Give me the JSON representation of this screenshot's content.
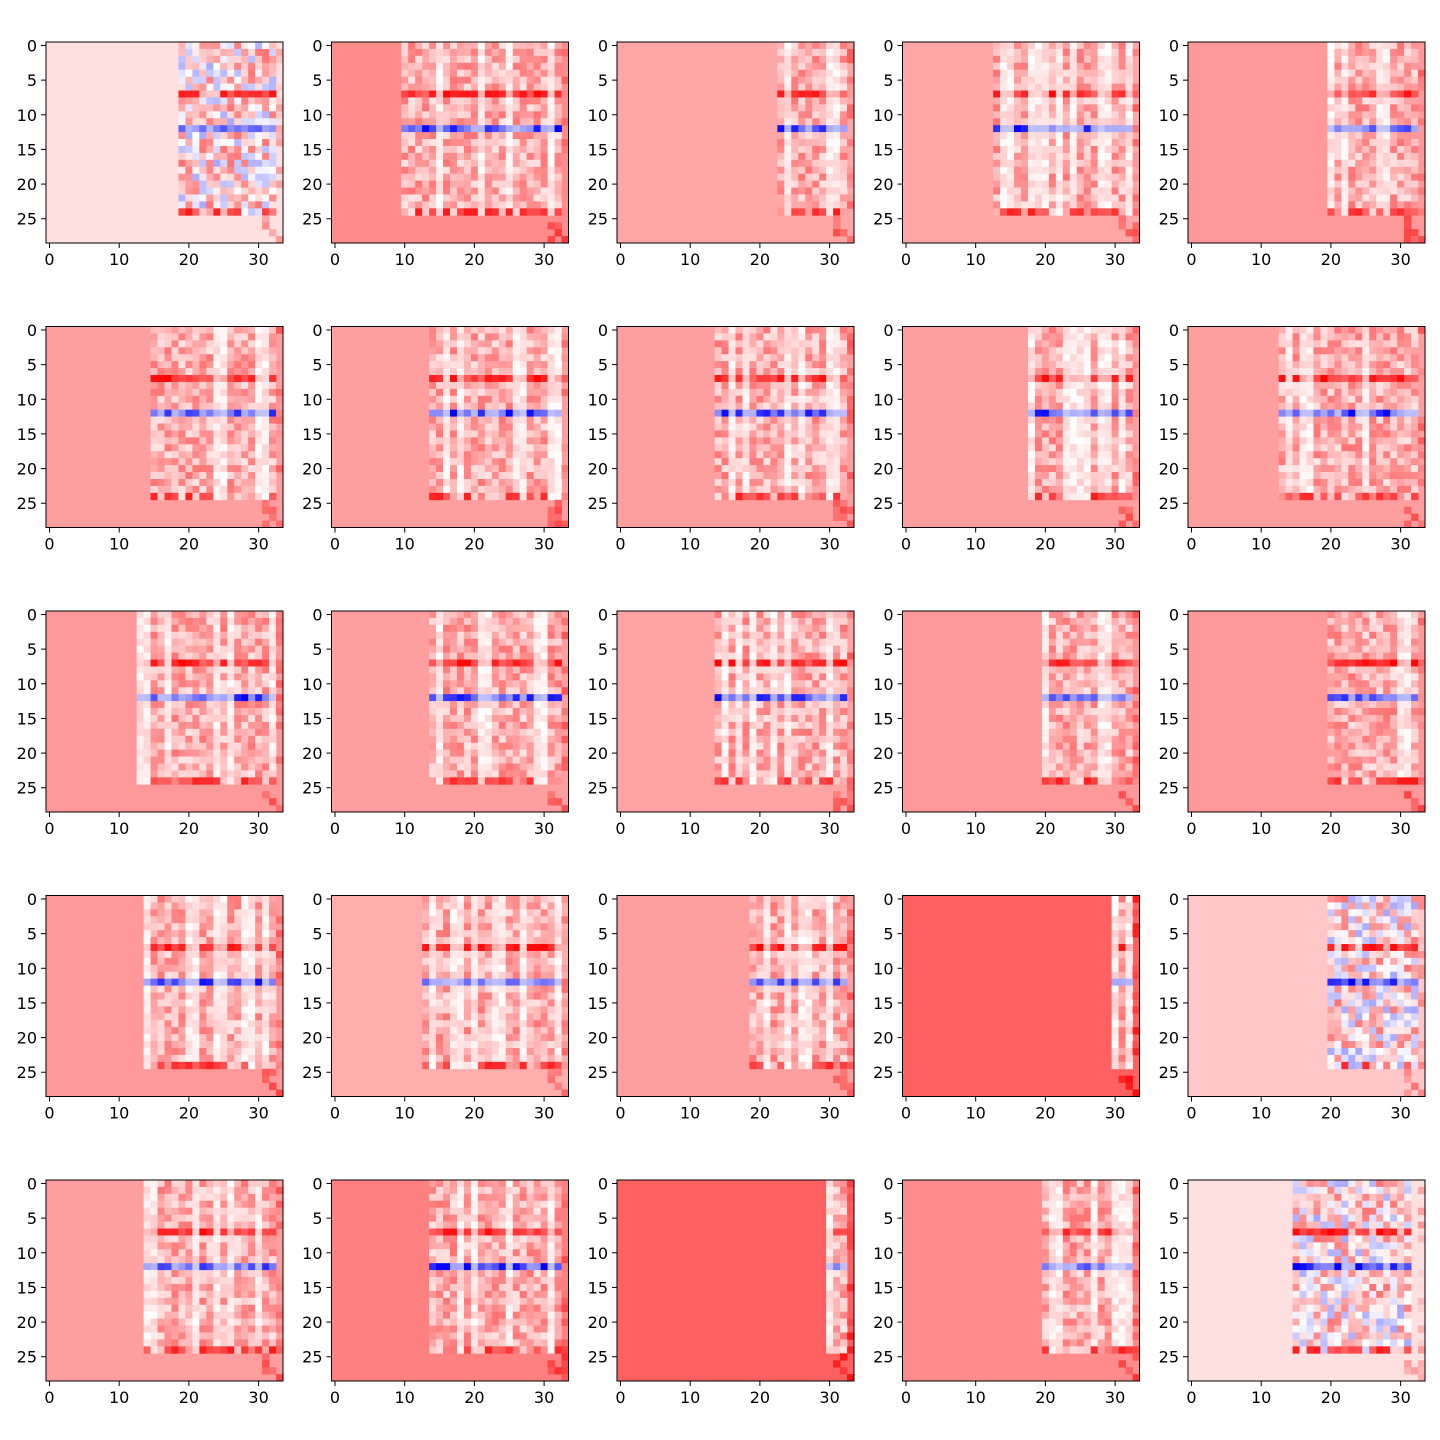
{
  "chart_data": {
    "type": "heatmap",
    "title": "",
    "colormap": "bwr",
    "panel_rows": 5,
    "panel_cols": 5,
    "matrix_rows": 29,
    "matrix_cols": 34,
    "xlim": [
      -0.5,
      33.5
    ],
    "ylim": [
      28.5,
      -0.5
    ],
    "x_ticks": [
      0,
      10,
      20,
      30
    ],
    "y_ticks": [
      0,
      5,
      10,
      15,
      20,
      25
    ],
    "x_tick_labels": [
      "0",
      "10",
      "20",
      "30"
    ],
    "y_tick_labels": [
      "0",
      "5",
      "10",
      "15",
      "20",
      "25"
    ],
    "colors": {
      "positive": "#ff0000",
      "negative": "#0000ff",
      "zero": "#ffffff"
    },
    "panels": [
      {
        "background": 0.12,
        "data_start": 19,
        "data_end": 32,
        "red_row": 7,
        "blue_row": 12,
        "blue_strength": 0.55,
        "mixed": true,
        "seed": 3
      },
      {
        "background": 0.45,
        "data_start": 10,
        "data_end": 32,
        "red_row": 7,
        "blue_row": 12,
        "blue_strength": 0.85,
        "mixed": false,
        "seed": 7
      },
      {
        "background": 0.35,
        "data_start": 23,
        "data_end": 32,
        "red_row": 7,
        "blue_row": 12,
        "blue_strength": 0.85,
        "mixed": false,
        "seed": 11
      },
      {
        "background": 0.35,
        "data_start": 13,
        "data_end": 32,
        "red_row": 7,
        "blue_row": 12,
        "blue_strength": 0.85,
        "mixed": false,
        "seed": 13
      },
      {
        "background": 0.4,
        "data_start": 20,
        "data_end": 32,
        "red_row": 7,
        "blue_row": 12,
        "blue_strength": 0.7,
        "mixed": false,
        "seed": 17
      },
      {
        "background": 0.38,
        "data_start": 15,
        "data_end": 32,
        "red_row": 7,
        "blue_row": 12,
        "blue_strength": 0.6,
        "mixed": false,
        "seed": 19
      },
      {
        "background": 0.38,
        "data_start": 14,
        "data_end": 32,
        "red_row": 7,
        "blue_row": 12,
        "blue_strength": 0.75,
        "mixed": false,
        "seed": 23
      },
      {
        "background": 0.38,
        "data_start": 14,
        "data_end": 32,
        "red_row": 7,
        "blue_row": 12,
        "blue_strength": 0.75,
        "mixed": false,
        "seed": 29
      },
      {
        "background": 0.38,
        "data_start": 18,
        "data_end": 32,
        "red_row": 7,
        "blue_row": 12,
        "blue_strength": 0.75,
        "mixed": false,
        "seed": 31
      },
      {
        "background": 0.38,
        "data_start": 13,
        "data_end": 32,
        "red_row": 7,
        "blue_row": 12,
        "blue_strength": 0.75,
        "mixed": false,
        "seed": 37
      },
      {
        "background": 0.4,
        "data_start": 13,
        "data_end": 32,
        "red_row": 7,
        "blue_row": 12,
        "blue_strength": 0.75,
        "mixed": false,
        "seed": 41
      },
      {
        "background": 0.38,
        "data_start": 14,
        "data_end": 32,
        "red_row": 7,
        "blue_row": 12,
        "blue_strength": 0.75,
        "mixed": false,
        "seed": 43
      },
      {
        "background": 0.36,
        "data_start": 14,
        "data_end": 32,
        "red_row": 7,
        "blue_row": 12,
        "blue_strength": 0.75,
        "mixed": false,
        "seed": 47
      },
      {
        "background": 0.4,
        "data_start": 20,
        "data_end": 32,
        "red_row": 7,
        "blue_row": 12,
        "blue_strength": 0.5,
        "mixed": false,
        "seed": 53
      },
      {
        "background": 0.4,
        "data_start": 20,
        "data_end": 32,
        "red_row": 7,
        "blue_row": 12,
        "blue_strength": 0.6,
        "mixed": false,
        "seed": 59
      },
      {
        "background": 0.4,
        "data_start": 14,
        "data_end": 32,
        "red_row": 7,
        "blue_row": 12,
        "blue_strength": 0.8,
        "mixed": false,
        "seed": 61
      },
      {
        "background": 0.32,
        "data_start": 13,
        "data_end": 32,
        "red_row": 7,
        "blue_row": 12,
        "blue_strength": 0.35,
        "mixed": false,
        "seed": 67
      },
      {
        "background": 0.38,
        "data_start": 19,
        "data_end": 32,
        "red_row": 7,
        "blue_row": 12,
        "blue_strength": 0.8,
        "mixed": false,
        "seed": 71
      },
      {
        "background": 0.62,
        "data_start": 30,
        "data_end": 32,
        "red_row": 7,
        "blue_row": 12,
        "blue_strength": 0.8,
        "mixed": false,
        "seed": 73
      },
      {
        "background": 0.22,
        "data_start": 20,
        "data_end": 32,
        "red_row": 7,
        "blue_row": 12,
        "blue_strength": 0.85,
        "mixed": true,
        "seed": 79
      },
      {
        "background": 0.38,
        "data_start": 14,
        "data_end": 32,
        "red_row": 7,
        "blue_row": 12,
        "blue_strength": 0.6,
        "mixed": false,
        "seed": 83
      },
      {
        "background": 0.5,
        "data_start": 14,
        "data_end": 32,
        "red_row": 7,
        "blue_row": 12,
        "blue_strength": 0.85,
        "mixed": false,
        "seed": 89
      },
      {
        "background": 0.62,
        "data_start": 30,
        "data_end": 32,
        "red_row": 7,
        "blue_row": 12,
        "blue_strength": 0.8,
        "mixed": false,
        "seed": 97
      },
      {
        "background": 0.45,
        "data_start": 20,
        "data_end": 32,
        "red_row": 7,
        "blue_row": 12,
        "blue_strength": 0.5,
        "mixed": false,
        "seed": 101
      },
      {
        "background": 0.12,
        "data_start": 15,
        "data_end": 31,
        "red_row": 7,
        "blue_row": 12,
        "blue_strength": 0.9,
        "mixed": true,
        "seed": 103
      }
    ]
  }
}
